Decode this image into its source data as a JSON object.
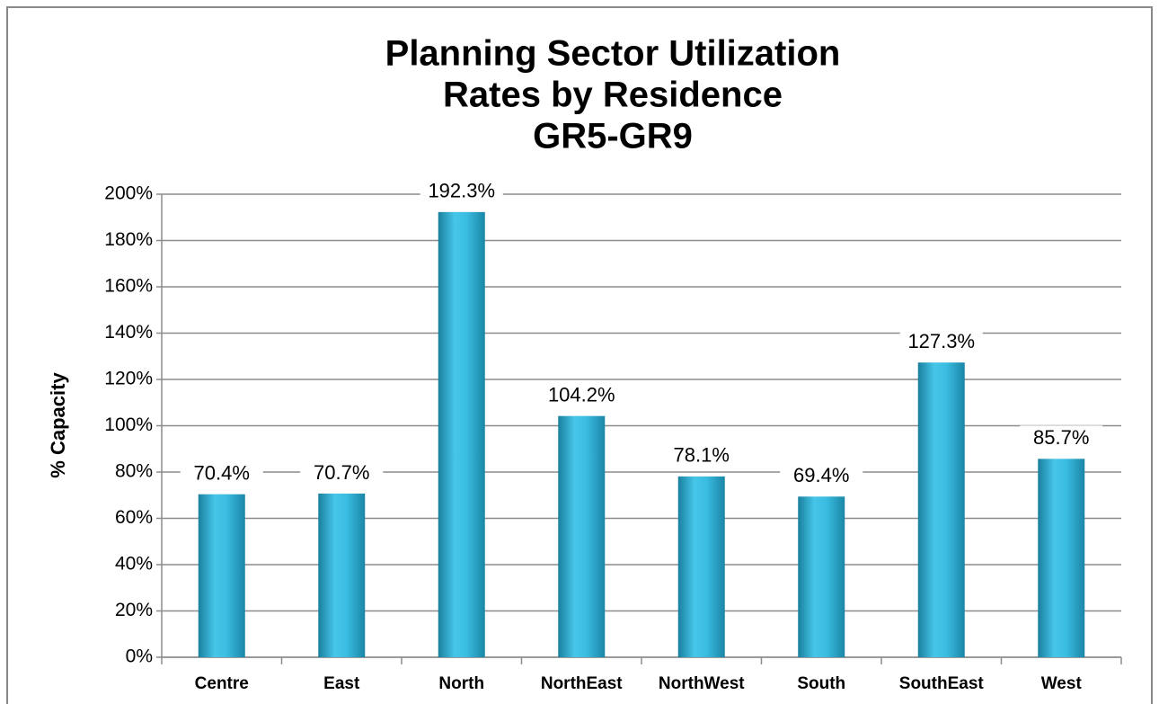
{
  "chart_data": {
    "type": "bar",
    "title": [
      "Planning Sector Utilization",
      "Rates by Residence",
      "GR5-GR9"
    ],
    "y_label": "% Capacity",
    "categories": [
      "Centre",
      "East",
      "North",
      "NorthEast",
      "NorthWest",
      "South",
      "SouthEast",
      "West"
    ],
    "values": [
      70.4,
      70.7,
      192.3,
      104.2,
      78.1,
      69.4,
      127.3,
      85.7
    ],
    "value_labels": [
      "70.4%",
      "70.7%",
      "192.3%",
      "104.2%",
      "78.1%",
      "69.4%",
      "127.3%",
      "85.7%"
    ],
    "color": "#31b4d8",
    "ylim": [
      0,
      200
    ],
    "yticks": [
      {
        "value": 0,
        "label": "0%"
      },
      {
        "value": 20,
        "label": "20%"
      },
      {
        "value": 40,
        "label": "40%"
      },
      {
        "value": 60,
        "label": "60%"
      },
      {
        "value": 80,
        "label": "80%"
      },
      {
        "value": 100,
        "label": "100%"
      },
      {
        "value": 120,
        "label": "120%"
      },
      {
        "value": 140,
        "label": "140%"
      },
      {
        "value": 160,
        "label": "160%"
      },
      {
        "value": 180,
        "label": "180%"
      },
      {
        "value": 200,
        "label": "200%"
      }
    ],
    "grid": true
  }
}
